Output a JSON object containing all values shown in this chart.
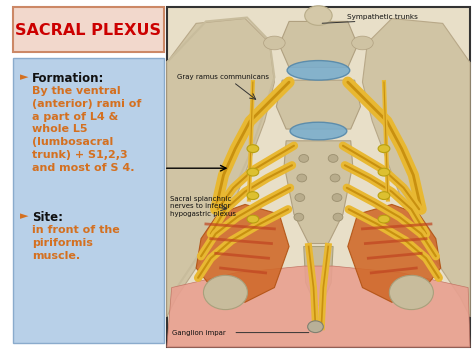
{
  "title": "SACRAL PLEXUS",
  "title_color": "#cc0000",
  "title_bg": "#f2d8cc",
  "title_border": "#cc8866",
  "left_panel_bg": "#b8d0e8",
  "left_panel_border": "#8aabcc",
  "bullet_color": "#d47020",
  "formation_header": "Formation:",
  "formation_text": "By the ventral\n(anterior) rami of\na part of L4 &\nwhole L5\n(lumbosacral\ntrunk) + S1,2,3\nand most of S 4.",
  "site_header": "Site:",
  "site_text": "in front of the\npiriformis\nmuscle.",
  "label_gray_ramus": "Gray ramus communicans",
  "label_sacral": "Sacral splanchnic\nnerves to inferior\nhypogastric plexus",
  "label_sympathetic": "Sympathetic trunks",
  "label_ganglion": "Ganglion impar",
  "slide_bg": "#ffffff",
  "img_bg": "#e8dfc8",
  "bone_color": "#d4c8a8",
  "bone_dark": "#c0b090",
  "disc_color": "#7aadcc",
  "nerve_yellow": "#e8b832",
  "nerve_outline": "#c89010",
  "muscle_orange": "#e07830",
  "muscle_red": "#cc4422",
  "piriformis": "#d06030",
  "bottom_pink": "#e8a090"
}
